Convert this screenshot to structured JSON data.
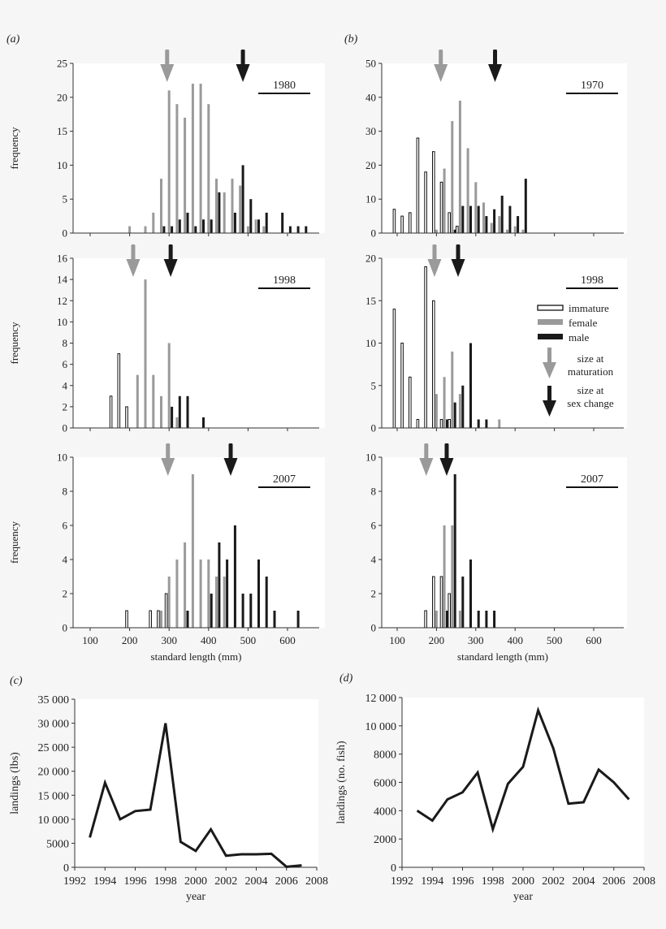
{
  "panel_labels": [
    "(a)",
    "(b)",
    "(c)",
    "(d)"
  ],
  "colors": {
    "immature": "#ffffff",
    "female": "#9a9a9a",
    "male": "#1a1a1a",
    "maturation_arrow": "#9a9a9a",
    "sex_change_arrow": "#1a1a1a"
  },
  "legend": {
    "immature": "immature",
    "female": "female",
    "male": "male",
    "maturation_line1": "size at",
    "maturation_line2": "maturation",
    "sex_change_line1": "size at",
    "sex_change_line2": "sex change"
  },
  "chart_data": [
    {
      "type": "bar",
      "panel": "a",
      "year_label": "1980",
      "ylabel": "frequency",
      "xlabel": "",
      "ylim": [
        0,
        25
      ],
      "yticks": [
        0,
        5,
        10,
        15,
        20,
        25
      ],
      "xlim": [
        57,
        680
      ],
      "xticks": [
        100,
        200,
        300,
        400,
        500,
        600
      ],
      "size_at_maturation": 295,
      "size_at_sex_change": 487,
      "series": [
        {
          "name": "immature",
          "values": []
        },
        {
          "name": "female",
          "values": [
            [
              200,
              1
            ],
            [
              240,
              1
            ],
            [
              260,
              3
            ],
            [
              280,
              8
            ],
            [
              300,
              21
            ],
            [
              320,
              19
            ],
            [
              340,
              17
            ],
            [
              360,
              22
            ],
            [
              380,
              22
            ],
            [
              400,
              19
            ],
            [
              420,
              8
            ],
            [
              440,
              6
            ],
            [
              460,
              8
            ],
            [
              480,
              7
            ],
            [
              500,
              1
            ],
            [
              520,
              2
            ],
            [
              540,
              1
            ]
          ]
        },
        {
          "name": "male",
          "values": [
            [
              280,
              1
            ],
            [
              300,
              1
            ],
            [
              320,
              2
            ],
            [
              340,
              3
            ],
            [
              360,
              1
            ],
            [
              380,
              2
            ],
            [
              400,
              2
            ],
            [
              420,
              6
            ],
            [
              460,
              3
            ],
            [
              480,
              10
            ],
            [
              500,
              5
            ],
            [
              520,
              2
            ],
            [
              540,
              3
            ],
            [
              580,
              3
            ],
            [
              600,
              1
            ],
            [
              620,
              1
            ],
            [
              640,
              1
            ]
          ]
        }
      ]
    },
    {
      "type": "bar",
      "panel": "b",
      "year_label": "1970",
      "ylabel": "",
      "xlabel": "",
      "ylim": [
        0,
        50
      ],
      "yticks": [
        0,
        10,
        20,
        30,
        40,
        50
      ],
      "xlim": [
        61,
        680
      ],
      "xticks": [
        100,
        200,
        300,
        400,
        500,
        600
      ],
      "size_at_maturation": 211,
      "size_at_sex_change": 349,
      "series": [
        {
          "name": "immature",
          "values": [
            [
              100,
              7
            ],
            [
              120,
              5
            ],
            [
              140,
              6
            ],
            [
              160,
              28
            ],
            [
              180,
              18
            ],
            [
              200,
              24
            ],
            [
              220,
              15
            ],
            [
              240,
              6
            ],
            [
              260,
              2
            ]
          ]
        },
        {
          "name": "female",
          "values": [
            [
              200,
              1
            ],
            [
              220,
              19
            ],
            [
              240,
              33
            ],
            [
              260,
              39
            ],
            [
              280,
              25
            ],
            [
              300,
              15
            ],
            [
              320,
              9
            ],
            [
              340,
              3
            ],
            [
              360,
              5
            ],
            [
              380,
              1
            ],
            [
              400,
              2
            ],
            [
              420,
              1
            ]
          ]
        },
        {
          "name": "male",
          "values": [
            [
              240,
              1
            ],
            [
              260,
              8
            ],
            [
              280,
              8
            ],
            [
              300,
              8
            ],
            [
              320,
              5
            ],
            [
              340,
              7
            ],
            [
              360,
              11
            ],
            [
              380,
              8
            ],
            [
              400,
              5
            ],
            [
              420,
              16
            ]
          ]
        }
      ]
    },
    {
      "type": "bar",
      "panel": "a",
      "year_label": "1998",
      "ylabel": "frequency",
      "xlabel": "",
      "ylim": [
        0,
        16
      ],
      "yticks": [
        0,
        2,
        4,
        6,
        8,
        10,
        12,
        14,
        16
      ],
      "xlim": [
        57,
        680
      ],
      "xticks": [
        100,
        200,
        300,
        400,
        500,
        600
      ],
      "size_at_maturation": 209,
      "size_at_sex_change": 304,
      "series": [
        {
          "name": "immature",
          "values": [
            [
              160,
              3
            ],
            [
              180,
              7
            ],
            [
              200,
              2
            ]
          ]
        },
        {
          "name": "female",
          "values": [
            [
              220,
              5
            ],
            [
              240,
              14
            ],
            [
              260,
              5
            ],
            [
              280,
              3
            ],
            [
              300,
              8
            ],
            [
              320,
              1
            ]
          ]
        },
        {
          "name": "male",
          "values": [
            [
              300,
              2
            ],
            [
              320,
              3
            ],
            [
              340,
              3
            ],
            [
              380,
              1
            ]
          ]
        }
      ]
    },
    {
      "type": "bar",
      "panel": "b",
      "year_label": "1998",
      "ylabel": "",
      "xlabel": "",
      "ylim": [
        0,
        20
      ],
      "yticks": [
        0,
        5,
        10,
        15,
        20
      ],
      "xlim": [
        61,
        680
      ],
      "xticks": [
        100,
        200,
        300,
        400,
        500,
        600
      ],
      "size_at_maturation": 195,
      "size_at_sex_change": 255,
      "series": [
        {
          "name": "immature",
          "values": [
            [
              100,
              14
            ],
            [
              120,
              10
            ],
            [
              140,
              6
            ],
            [
              160,
              1
            ],
            [
              180,
              19
            ],
            [
              200,
              15
            ],
            [
              220,
              1
            ],
            [
              240,
              1
            ]
          ]
        },
        {
          "name": "female",
          "values": [
            [
              200,
              4
            ],
            [
              220,
              6
            ],
            [
              240,
              9
            ],
            [
              260,
              4
            ],
            [
              360,
              1
            ]
          ]
        },
        {
          "name": "male",
          "values": [
            [
              220,
              1
            ],
            [
              240,
              3
            ],
            [
              260,
              5
            ],
            [
              280,
              10
            ],
            [
              300,
              1
            ],
            [
              320,
              1
            ]
          ]
        }
      ]
    },
    {
      "type": "bar",
      "panel": "a",
      "year_label": "2007",
      "ylabel": "frequency",
      "xlabel": "standard length (mm)",
      "ylim": [
        0,
        10
      ],
      "yticks": [
        0,
        2,
        4,
        6,
        8,
        10
      ],
      "xlim": [
        57,
        680
      ],
      "xticks": [
        100,
        200,
        300,
        400,
        500,
        600
      ],
      "size_at_maturation": 297,
      "size_at_sex_change": 456,
      "series": [
        {
          "name": "immature",
          "values": [
            [
              200,
              1
            ],
            [
              260,
              1
            ],
            [
              280,
              1
            ],
            [
              300,
              2
            ]
          ]
        },
        {
          "name": "female",
          "values": [
            [
              280,
              1
            ],
            [
              300,
              3
            ],
            [
              320,
              4
            ],
            [
              340,
              5
            ],
            [
              360,
              9
            ],
            [
              380,
              4
            ],
            [
              400,
              4
            ],
            [
              420,
              3
            ],
            [
              440,
              3
            ]
          ]
        },
        {
          "name": "male",
          "values": [
            [
              340,
              1
            ],
            [
              400,
              2
            ],
            [
              420,
              5
            ],
            [
              440,
              4
            ],
            [
              460,
              6
            ],
            [
              480,
              2
            ],
            [
              500,
              2
            ],
            [
              520,
              4
            ],
            [
              540,
              3
            ],
            [
              560,
              1
            ],
            [
              620,
              1
            ]
          ]
        }
      ]
    },
    {
      "type": "bar",
      "panel": "b",
      "year_label": "2007",
      "ylabel": "",
      "xlabel": "standard length (mm)",
      "ylim": [
        0,
        10
      ],
      "yticks": [
        0,
        2,
        4,
        6,
        8,
        10
      ],
      "xlim": [
        61,
        680
      ],
      "xticks": [
        100,
        200,
        300,
        400,
        500,
        600
      ],
      "size_at_maturation": 174,
      "size_at_sex_change": 226,
      "series": [
        {
          "name": "immature",
          "values": [
            [
              180,
              1
            ],
            [
              200,
              3
            ],
            [
              220,
              3
            ],
            [
              240,
              2
            ]
          ]
        },
        {
          "name": "female",
          "values": [
            [
              200,
              1
            ],
            [
              220,
              6
            ],
            [
              240,
              6
            ],
            [
              260,
              1
            ]
          ]
        },
        {
          "name": "male",
          "values": [
            [
              220,
              1
            ],
            [
              240,
              9
            ],
            [
              260,
              3
            ],
            [
              280,
              4
            ],
            [
              300,
              1
            ],
            [
              320,
              1
            ],
            [
              340,
              1
            ]
          ]
        }
      ]
    },
    {
      "type": "line",
      "panel": "c",
      "xlabel": "year",
      "ylabel": "landings (lbs)",
      "xlim": [
        1992,
        2008
      ],
      "ylim": [
        0,
        35000
      ],
      "xticks": [
        "1992",
        "1994",
        "1996",
        "1998",
        "2000",
        "2002",
        "2004",
        "2006",
        "2008"
      ],
      "yticks": [
        "0",
        "5000",
        "10 000",
        "15 000",
        "20 000",
        "25 000",
        "30 000",
        "35 000"
      ],
      "x": [
        1993,
        1994,
        1995,
        1996,
        1997,
        1998,
        1999,
        2000,
        2001,
        2002,
        2003,
        2004,
        2005,
        2006,
        2007
      ],
      "y": [
        6200,
        17600,
        10000,
        11700,
        12000,
        30000,
        5300,
        3400,
        7900,
        2400,
        2700,
        2700,
        2800,
        100,
        400
      ]
    },
    {
      "type": "line",
      "panel": "d",
      "xlabel": "year",
      "ylabel": "landings (no. fish)",
      "xlim": [
        1992,
        2008
      ],
      "ylim": [
        0,
        12000
      ],
      "xticks": [
        "1992",
        "1994",
        "1996",
        "1998",
        "2000",
        "2002",
        "2004",
        "2006",
        "2008"
      ],
      "yticks": [
        "0",
        "2000",
        "4000",
        "6000",
        "8000",
        "10 000",
        "12 000"
      ],
      "x": [
        1993,
        1994,
        1995,
        1996,
        1997,
        1998,
        1999,
        2000,
        2001,
        2002,
        2003,
        2004,
        2005,
        2006,
        2007
      ],
      "y": [
        4000,
        3300,
        4800,
        5300,
        6700,
        2700,
        5900,
        7100,
        11100,
        8400,
        4500,
        4600,
        6900,
        6000,
        4800
      ]
    }
  ]
}
